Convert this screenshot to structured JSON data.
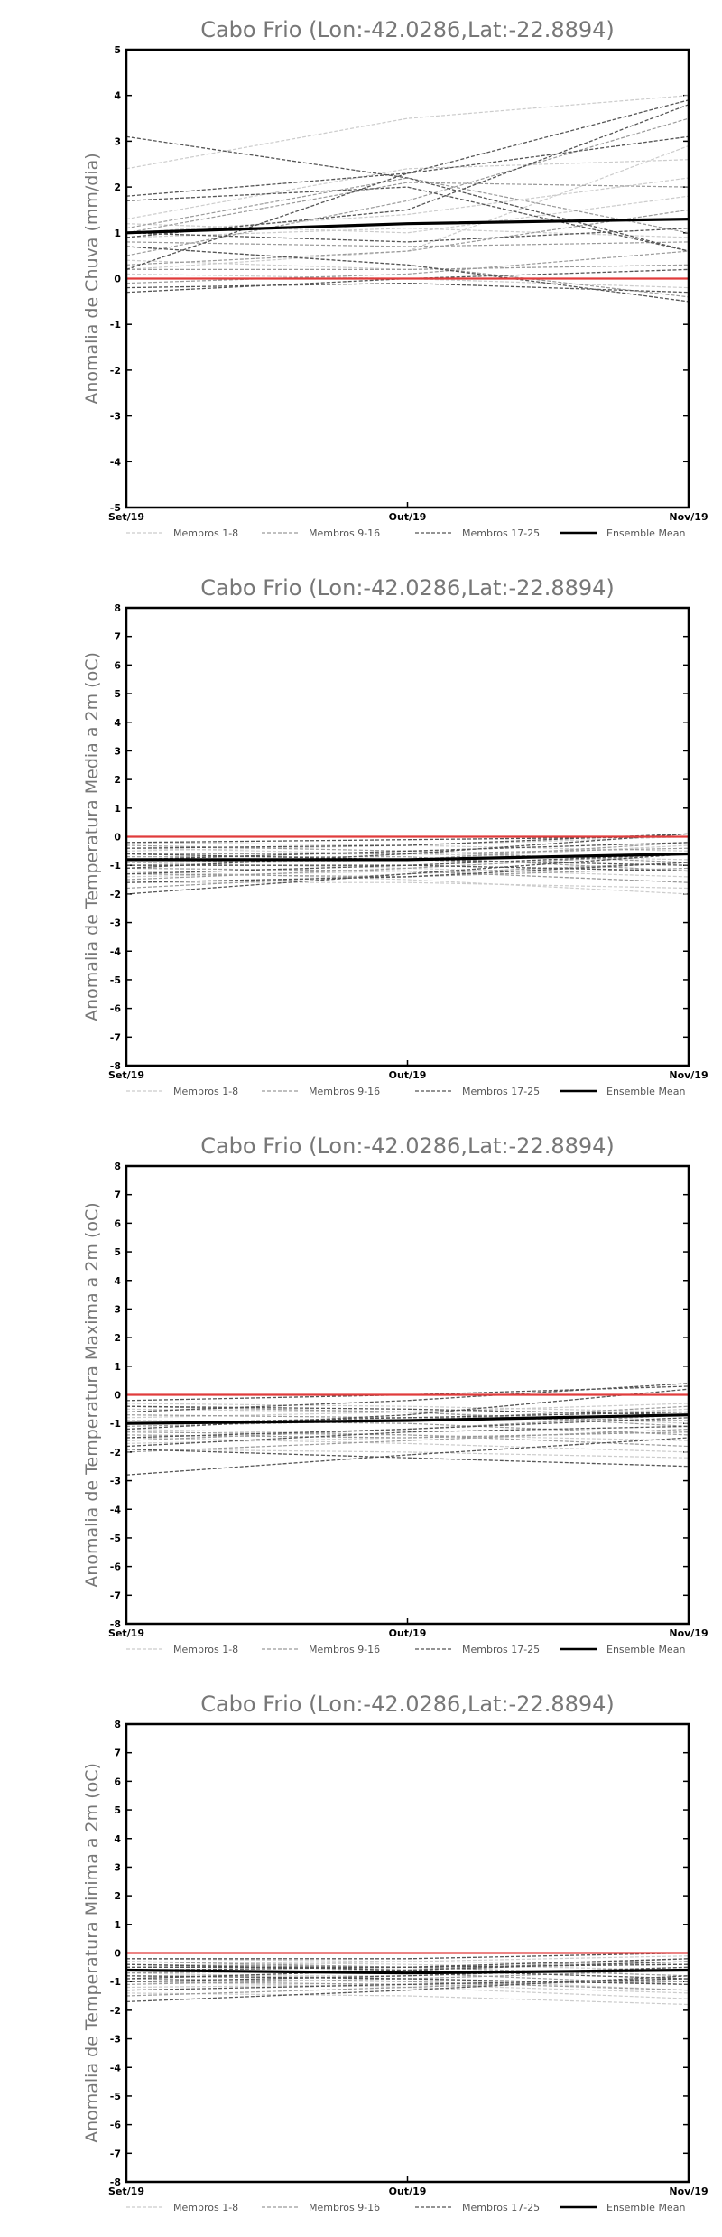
{
  "page": {
    "background": "#ffffff"
  },
  "styles": {
    "members_1_8_color": "#cccccc",
    "members_9_16_color": "#9a9a9a",
    "members_17_25_color": "#555555",
    "ensemble_color": "#000000",
    "zero_line_color": "#e03c3c"
  },
  "chart_data": [
    {
      "type": "line",
      "title": "Cabo Frio (Lon:-42.0286,Lat:-22.8894)",
      "ylabel": "Anomalia de Chuva (mm/dia)",
      "x": [
        "Set/19",
        "Out/19",
        "Nov/19"
      ],
      "ylim": [
        -5,
        5
      ],
      "yticks": [
        -5,
        -4,
        -3,
        -2,
        -1,
        0,
        1,
        2,
        3,
        4,
        5
      ],
      "grid": false,
      "legend": {
        "placement": "bottom",
        "items": [
          "Membros 1-8",
          "Membros 9-16",
          "Membros 17-25",
          "Ensemble Mean"
        ]
      },
      "series": [
        {
          "group": "members_1_8",
          "values": [
            2.4,
            3.5,
            4.0
          ]
        },
        {
          "group": "members_1_8",
          "values": [
            1.3,
            2.4,
            2.6
          ]
        },
        {
          "group": "members_1_8",
          "values": [
            0.2,
            0.6,
            2.9
          ]
        },
        {
          "group": "members_1_8",
          "values": [
            1.0,
            1.4,
            2.2
          ]
        },
        {
          "group": "members_1_8",
          "values": [
            0.9,
            1.1,
            0.9
          ]
        },
        {
          "group": "members_1_8",
          "values": [
            0.4,
            0.2,
            0.3
          ]
        },
        {
          "group": "members_1_8",
          "values": [
            0.1,
            0.0,
            -0.2
          ]
        },
        {
          "group": "members_1_8",
          "values": [
            1.2,
            1.0,
            1.8
          ]
        },
        {
          "group": "members_9_16",
          "values": [
            0.5,
            1.7,
            3.5
          ]
        },
        {
          "group": "members_9_16",
          "values": [
            0.3,
            0.6,
            1.5
          ]
        },
        {
          "group": "members_9_16",
          "values": [
            1.0,
            2.1,
            2.0
          ]
        },
        {
          "group": "members_9_16",
          "values": [
            -0.1,
            0.1,
            0.6
          ]
        },
        {
          "group": "members_9_16",
          "values": [
            0.8,
            0.7,
            0.8
          ]
        },
        {
          "group": "members_9_16",
          "values": [
            0.7,
            0.3,
            -0.4
          ]
        },
        {
          "group": "members_9_16",
          "values": [
            1.1,
            2.2,
            1.0
          ]
        },
        {
          "group": "members_9_16",
          "values": [
            0.2,
            0.2,
            0.3
          ]
        },
        {
          "group": "members_17_25",
          "values": [
            3.1,
            2.2,
            0.6
          ]
        },
        {
          "group": "members_17_25",
          "values": [
            1.8,
            2.3,
            3.1
          ]
        },
        {
          "group": "members_17_25",
          "values": [
            0.2,
            2.3,
            3.9
          ]
        },
        {
          "group": "members_17_25",
          "values": [
            1.7,
            2.0,
            0.6
          ]
        },
        {
          "group": "members_17_25",
          "values": [
            0.9,
            1.5,
            3.8
          ]
        },
        {
          "group": "members_17_25",
          "values": [
            -0.3,
            0.0,
            0.2
          ]
        },
        {
          "group": "members_17_25",
          "values": [
            0.7,
            0.3,
            -0.5
          ]
        },
        {
          "group": "members_17_25",
          "values": [
            1.0,
            0.8,
            1.1
          ]
        },
        {
          "group": "members_17_25",
          "values": [
            -0.2,
            -0.1,
            -0.3
          ]
        },
        {
          "group": "ensemble",
          "values": [
            1.0,
            1.2,
            1.3
          ]
        },
        {
          "group": "zero",
          "values": [
            0.0,
            0.0,
            0.0
          ]
        }
      ]
    },
    {
      "type": "line",
      "title": "Cabo Frio (Lon:-42.0286,Lat:-22.8894)",
      "ylabel": "Anomalia de Temperatura Media a 2m (oC)",
      "x": [
        "Set/19",
        "Out/19",
        "Nov/19"
      ],
      "ylim": [
        -8,
        8
      ],
      "yticks": [
        -8,
        -7,
        -6,
        -5,
        -4,
        -3,
        -2,
        -1,
        0,
        1,
        2,
        3,
        4,
        5,
        6,
        7,
        8
      ],
      "grid": false,
      "legend": {
        "placement": "bottom",
        "items": [
          "Membros 1-8",
          "Membros 9-16",
          "Membros 17-25",
          "Ensemble Mean"
        ]
      },
      "series": [
        {
          "group": "members_1_8",
          "values": [
            -1.6,
            -1.6,
            -1.8
          ]
        },
        {
          "group": "members_1_8",
          "values": [
            -1.2,
            -1.5,
            -2.0
          ]
        },
        {
          "group": "members_1_8",
          "values": [
            -0.4,
            -0.6,
            -0.8
          ]
        },
        {
          "group": "members_1_8",
          "values": [
            -0.9,
            -1.1,
            -1.4
          ]
        },
        {
          "group": "members_1_8",
          "values": [
            -0.5,
            -0.3,
            0.0
          ]
        },
        {
          "group": "members_1_8",
          "values": [
            -1.0,
            -0.8,
            -0.3
          ]
        },
        {
          "group": "members_1_8",
          "values": [
            -0.2,
            -0.3,
            -0.5
          ]
        },
        {
          "group": "members_1_8",
          "values": [
            -1.4,
            -1.2,
            -1.6
          ]
        },
        {
          "group": "members_9_16",
          "values": [
            -1.8,
            -1.3,
            -0.9
          ]
        },
        {
          "group": "members_9_16",
          "values": [
            -0.6,
            -0.6,
            -0.4
          ]
        },
        {
          "group": "members_9_16",
          "values": [
            -1.1,
            -1.2,
            -1.6
          ]
        },
        {
          "group": "members_9_16",
          "values": [
            -0.3,
            -0.5,
            -0.9
          ]
        },
        {
          "group": "members_9_16",
          "values": [
            -1.5,
            -1.1,
            -0.6
          ]
        },
        {
          "group": "members_9_16",
          "values": [
            -0.7,
            -0.7,
            -1.2
          ]
        },
        {
          "group": "members_9_16",
          "values": [
            -0.9,
            -0.8,
            -0.2
          ]
        },
        {
          "group": "members_9_16",
          "values": [
            -1.3,
            -1.4,
            -1.1
          ]
        },
        {
          "group": "members_17_25",
          "values": [
            -2.0,
            -1.3,
            -0.6
          ]
        },
        {
          "group": "members_17_25",
          "values": [
            -0.4,
            -0.3,
            0.1
          ]
        },
        {
          "group": "members_17_25",
          "values": [
            -1.0,
            -1.0,
            -1.2
          ]
        },
        {
          "group": "members_17_25",
          "values": [
            -0.8,
            -0.5,
            -0.2
          ]
        },
        {
          "group": "members_17_25",
          "values": [
            -1.3,
            -1.0,
            -0.6
          ]
        },
        {
          "group": "members_17_25",
          "values": [
            -0.6,
            -0.8,
            -1.0
          ]
        },
        {
          "group": "members_17_25",
          "values": [
            -1.6,
            -1.4,
            -0.9
          ]
        },
        {
          "group": "members_17_25",
          "values": [
            -0.2,
            -0.1,
            0.0
          ]
        },
        {
          "group": "members_17_25",
          "values": [
            -1.1,
            -0.6,
            0.1
          ]
        },
        {
          "group": "ensemble",
          "values": [
            -0.8,
            -0.8,
            -0.6
          ]
        },
        {
          "group": "zero",
          "values": [
            0.0,
            0.0,
            0.0
          ]
        }
      ]
    },
    {
      "type": "line",
      "title": "Cabo Frio (Lon:-42.0286,Lat:-22.8894)",
      "ylabel": "Anomalia de Temperatura Maxima a 2m (oC)",
      "x": [
        "Set/19",
        "Out/19",
        "Nov/19"
      ],
      "ylim": [
        -8,
        8
      ],
      "yticks": [
        -8,
        -7,
        -6,
        -5,
        -4,
        -3,
        -2,
        -1,
        0,
        1,
        2,
        3,
        4,
        5,
        6,
        7,
        8
      ],
      "grid": false,
      "legend": {
        "placement": "bottom",
        "items": [
          "Membros 1-8",
          "Membros 9-16",
          "Membros 17-25",
          "Ensemble Mean"
        ]
      },
      "series": [
        {
          "group": "members_1_8",
          "values": [
            -1.9,
            -2.0,
            -2.2
          ]
        },
        {
          "group": "members_1_8",
          "values": [
            -1.5,
            -1.7,
            -2.0
          ]
        },
        {
          "group": "members_1_8",
          "values": [
            -0.5,
            -0.6,
            -1.0
          ]
        },
        {
          "group": "members_1_8",
          "values": [
            -1.2,
            -1.4,
            -1.6
          ]
        },
        {
          "group": "members_1_8",
          "values": [
            -0.8,
            -0.6,
            -0.3
          ]
        },
        {
          "group": "members_1_8",
          "values": [
            -1.0,
            -0.9,
            -0.5
          ]
        },
        {
          "group": "members_1_8",
          "values": [
            -0.3,
            -0.4,
            -0.6
          ]
        },
        {
          "group": "members_1_8",
          "values": [
            -1.7,
            -1.5,
            -1.3
          ]
        },
        {
          "group": "members_9_16",
          "values": [
            -2.0,
            -1.6,
            -1.2
          ]
        },
        {
          "group": "members_9_16",
          "values": [
            -0.7,
            -0.8,
            -0.9
          ]
        },
        {
          "group": "members_9_16",
          "values": [
            -1.3,
            -1.4,
            -1.8
          ]
        },
        {
          "group": "members_9_16",
          "values": [
            -0.4,
            -0.6,
            -1.1
          ]
        },
        {
          "group": "members_9_16",
          "values": [
            -1.6,
            -1.2,
            -0.7
          ]
        },
        {
          "group": "members_9_16",
          "values": [
            -0.9,
            -1.0,
            -1.4
          ]
        },
        {
          "group": "members_9_16",
          "values": [
            -1.1,
            -0.9,
            -0.4
          ]
        },
        {
          "group": "members_9_16",
          "values": [
            -1.4,
            -1.5,
            -1.3
          ]
        },
        {
          "group": "members_17_25",
          "values": [
            -2.8,
            -2.1,
            -1.5
          ]
        },
        {
          "group": "members_17_25",
          "values": [
            -1.9,
            -2.2,
            -2.5
          ]
        },
        {
          "group": "members_17_25",
          "values": [
            -0.6,
            -0.2,
            0.4
          ]
        },
        {
          "group": "members_17_25",
          "values": [
            -1.0,
            -0.8,
            -0.6
          ]
        },
        {
          "group": "members_17_25",
          "values": [
            -1.2,
            -0.7,
            0.2
          ]
        },
        {
          "group": "members_17_25",
          "values": [
            -0.4,
            -0.5,
            -0.7
          ]
        },
        {
          "group": "members_17_25",
          "values": [
            -1.5,
            -1.2,
            -0.8
          ]
        },
        {
          "group": "members_17_25",
          "values": [
            -0.2,
            0.0,
            0.3
          ]
        },
        {
          "group": "members_17_25",
          "values": [
            -1.8,
            -1.3,
            -1.1
          ]
        },
        {
          "group": "ensemble",
          "values": [
            -1.0,
            -0.9,
            -0.7
          ]
        },
        {
          "group": "zero",
          "values": [
            0.0,
            0.0,
            0.0
          ]
        }
      ]
    },
    {
      "type": "line",
      "title": "Cabo Frio (Lon:-42.0286,Lat:-22.8894)",
      "ylabel": "Anomalia de Temperatura Minima a 2m (oC)",
      "x": [
        "Set/19",
        "Out/19",
        "Nov/19"
      ],
      "ylim": [
        -8,
        8
      ],
      "yticks": [
        -8,
        -7,
        -6,
        -5,
        -4,
        -3,
        -2,
        -1,
        0,
        1,
        2,
        3,
        4,
        5,
        6,
        7,
        8
      ],
      "grid": false,
      "legend": {
        "placement": "bottom",
        "items": [
          "Membros 1-8",
          "Membros 9-16",
          "Membros 17-25",
          "Ensemble Mean"
        ]
      },
      "series": [
        {
          "group": "members_1_8",
          "values": [
            -1.4,
            -1.5,
            -1.8
          ]
        },
        {
          "group": "members_1_8",
          "values": [
            -1.0,
            -1.2,
            -1.6
          ]
        },
        {
          "group": "members_1_8",
          "values": [
            -0.3,
            -0.4,
            -0.6
          ]
        },
        {
          "group": "members_1_8",
          "values": [
            -0.7,
            -0.9,
            -1.3
          ]
        },
        {
          "group": "members_1_8",
          "values": [
            -0.5,
            -0.3,
            -0.1
          ]
        },
        {
          "group": "members_1_8",
          "values": [
            -0.8,
            -0.8,
            -0.5
          ]
        },
        {
          "group": "members_1_8",
          "values": [
            -0.2,
            -0.3,
            -0.4
          ]
        },
        {
          "group": "members_1_8",
          "values": [
            -1.2,
            -1.1,
            -1.4
          ]
        },
        {
          "group": "members_9_16",
          "values": [
            -1.5,
            -1.2,
            -0.9
          ]
        },
        {
          "group": "members_9_16",
          "values": [
            -0.4,
            -0.5,
            -0.4
          ]
        },
        {
          "group": "members_9_16",
          "values": [
            -0.9,
            -1.0,
            -1.3
          ]
        },
        {
          "group": "members_9_16",
          "values": [
            -0.3,
            -0.5,
            -0.8
          ]
        },
        {
          "group": "members_9_16",
          "values": [
            -1.1,
            -0.9,
            -0.6
          ]
        },
        {
          "group": "members_9_16",
          "values": [
            -0.6,
            -0.7,
            -1.1
          ]
        },
        {
          "group": "members_9_16",
          "values": [
            -0.7,
            -0.6,
            -0.2
          ]
        },
        {
          "group": "members_9_16",
          "values": [
            -1.0,
            -1.1,
            -1.0
          ]
        },
        {
          "group": "members_17_25",
          "values": [
            -1.7,
            -1.3,
            -0.8
          ]
        },
        {
          "group": "members_17_25",
          "values": [
            -0.5,
            -0.5,
            -0.2
          ]
        },
        {
          "group": "members_17_25",
          "values": [
            -0.8,
            -0.9,
            -1.1
          ]
        },
        {
          "group": "members_17_25",
          "values": [
            -0.6,
            -0.5,
            -0.4
          ]
        },
        {
          "group": "members_17_25",
          "values": [
            -1.0,
            -0.8,
            -0.5
          ]
        },
        {
          "group": "members_17_25",
          "values": [
            -0.4,
            -0.6,
            -0.9
          ]
        },
        {
          "group": "members_17_25",
          "values": [
            -1.3,
            -1.1,
            -0.9
          ]
        },
        {
          "group": "members_17_25",
          "values": [
            -0.2,
            -0.2,
            0.0
          ]
        },
        {
          "group": "members_17_25",
          "values": [
            -0.9,
            -0.6,
            -0.3
          ]
        },
        {
          "group": "ensemble",
          "values": [
            -0.6,
            -0.7,
            -0.6
          ]
        },
        {
          "group": "zero",
          "values": [
            0.0,
            0.0,
            0.0
          ]
        }
      ]
    }
  ]
}
